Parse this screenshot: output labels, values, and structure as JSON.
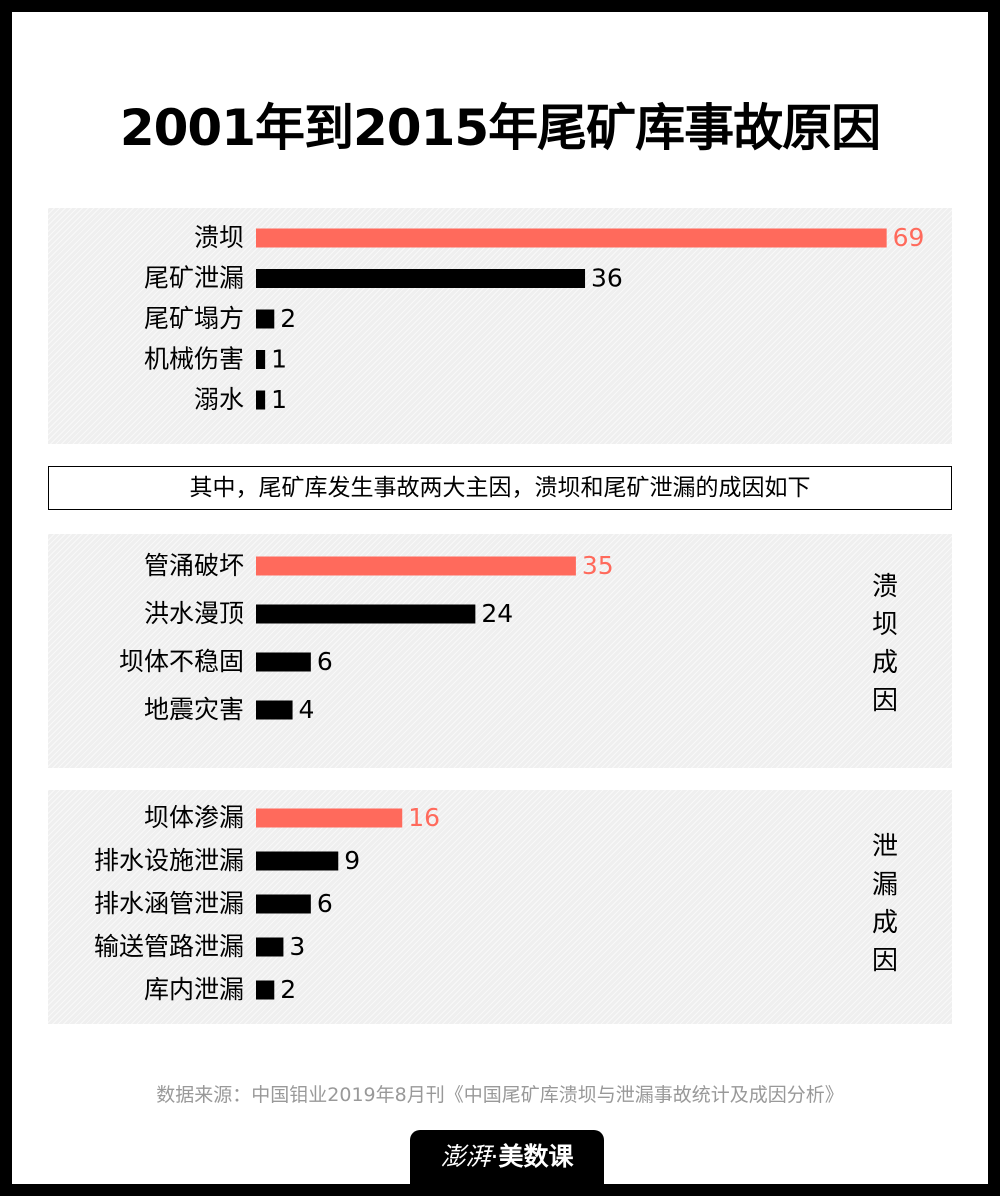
{
  "title": "2001年到2015年尾矿库事故原因",
  "banner": "其中，尾矿库发生事故两大主因，溃坝和尾矿泄漏的成因如下",
  "side_labels": {
    "dam_break": [
      "溃",
      "坝",
      "成",
      "因"
    ],
    "leakage": [
      "泄",
      "漏",
      "成",
      "因"
    ]
  },
  "source": "数据来源：中国钼业2019年8月刊《中国尾矿库溃坝与泄漏事故统计及成因分析》",
  "brand": {
    "left": "澎湃",
    "dot": "·",
    "right": "美数课"
  },
  "colors": {
    "highlight": "#ff6a5c",
    "bar": "#000000",
    "panel": "#efefef"
  },
  "chart_data": [
    {
      "type": "bar",
      "orientation": "horizontal",
      "categories": [
        "溃坝",
        "尾矿泄漏",
        "尾矿塌方",
        "机械伤害",
        "溺水"
      ],
      "values": [
        69,
        36,
        2,
        1,
        1
      ],
      "highlight_index": 0
    },
    {
      "type": "bar",
      "orientation": "horizontal",
      "categories": [
        "管涌破坏",
        "洪水漫顶",
        "坝体不稳固",
        "地震灾害"
      ],
      "values": [
        35,
        24,
        6,
        4
      ],
      "highlight_index": 0
    },
    {
      "type": "bar",
      "orientation": "horizontal",
      "categories": [
        "坝体渗漏",
        "排水设施泄漏",
        "排水涵管泄漏",
        "输送管路泄漏",
        "库内泄漏"
      ],
      "values": [
        16,
        9,
        6,
        3,
        2
      ],
      "highlight_index": 0
    }
  ]
}
